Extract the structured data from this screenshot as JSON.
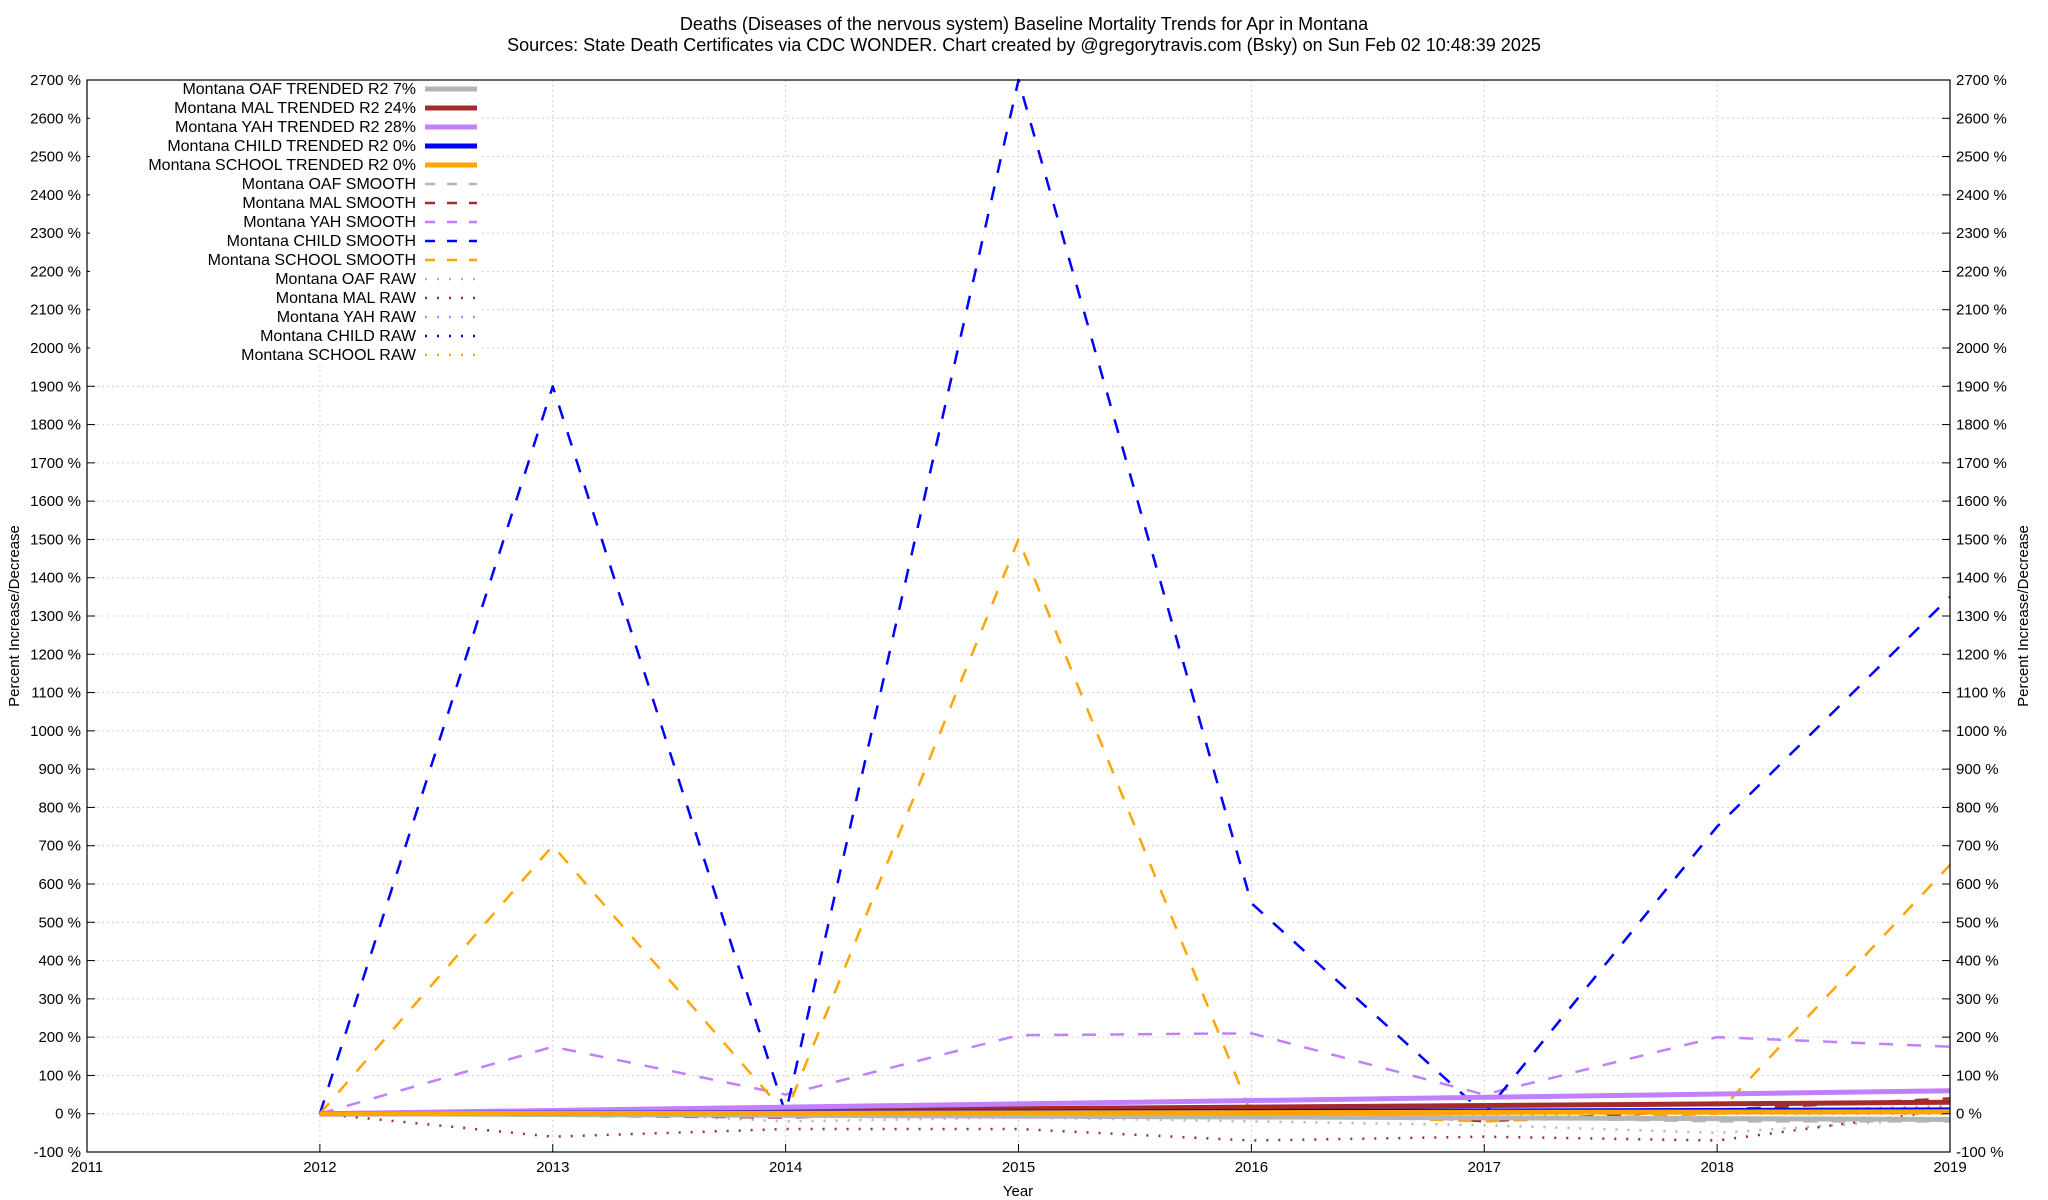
{
  "chart_data": {
    "type": "line",
    "title": "Deaths (Diseases of the nervous system)  Baseline Mortality Trends for Apr in Montana",
    "subtitle": "Sources: State Death Certificates via CDC WONDER.               Chart created by @gregorytravis.com (Bsky) on Sun Feb 02 10:48:39 2025",
    "xlabel": "Year",
    "ylabel": "Percent Increase/Decrease",
    "y2label": "Percent Increase/Decrease",
    "xlim": [
      2011,
      2019
    ],
    "ylim": [
      -100,
      2700
    ],
    "x_ticks": [
      "2011",
      "2012",
      "2013",
      "2014",
      "2015",
      "2016",
      "2017",
      "2018",
      "2019"
    ],
    "y_ticks": [
      "-100 %",
      "0 %",
      "100 %",
      "200 %",
      "300 %",
      "400 %",
      "500 %",
      "600 %",
      "700 %",
      "800 %",
      "900 %",
      "1000 %",
      "1100 %",
      "1200 %",
      "1300 %",
      "1400 %",
      "1500 %",
      "1600 %",
      "1700 %",
      "1800 %",
      "1900 %",
      "2000 %",
      "2100 %",
      "2200 %",
      "2300 %",
      "2400 %",
      "2500 %",
      "2600 %",
      "2700 %"
    ],
    "grid": true,
    "legend_position": "top-left",
    "series": [
      {
        "name": "Montana OAF TRENDED R2  7%",
        "style": "solid",
        "color": "#b4b4b4",
        "x": [
          2012,
          2019
        ],
        "y": [
          0,
          -15
        ]
      },
      {
        "name": "Montana MAL TRENDED R2  24%",
        "style": "solid",
        "color": "#a52a2a",
        "x": [
          2012,
          2019
        ],
        "y": [
          0,
          30
        ]
      },
      {
        "name": "Montana YAH TRENDED R2  28%",
        "style": "solid",
        "color": "#c080ff",
        "x": [
          2012,
          2019
        ],
        "y": [
          0,
          60
        ]
      },
      {
        "name": "Montana CHILD TRENDED R2   0%",
        "style": "solid",
        "color": "#0000ff",
        "x": [
          2012,
          2019
        ],
        "y": [
          0,
          10
        ]
      },
      {
        "name": "Montana SCHOOL TRENDED R2   0%",
        "style": "solid",
        "color": "#ffa500",
        "x": [
          2012,
          2019
        ],
        "y": [
          0,
          5
        ]
      },
      {
        "name": "Montana OAF SMOOTH",
        "style": "dashed",
        "color": "#b4b4b4",
        "x": [
          2012,
          2013,
          2014,
          2015,
          2016,
          2017,
          2018,
          2019
        ],
        "y": [
          0,
          10,
          -10,
          0,
          0,
          -10,
          -20,
          -20
        ]
      },
      {
        "name": "Montana MAL SMOOTH",
        "style": "dashed",
        "color": "#a52a2a",
        "x": [
          2012,
          2013,
          2014,
          2015,
          2016,
          2017,
          2018,
          2019
        ],
        "y": [
          0,
          -5,
          -10,
          10,
          20,
          -20,
          10,
          40
        ]
      },
      {
        "name": "Montana YAH SMOOTH",
        "style": "dashed",
        "color": "#c080ff",
        "x": [
          2012,
          2013,
          2014,
          2015,
          2016,
          2017,
          2018,
          2019
        ],
        "y": [
          0,
          175,
          50,
          205,
          210,
          50,
          200,
          175
        ]
      },
      {
        "name": "Montana CHILD SMOOTH",
        "style": "dashed",
        "color": "#0000ff",
        "x": [
          2012,
          2013,
          2014,
          2015,
          2016,
          2017,
          2018,
          2019
        ],
        "y": [
          0,
          1900,
          0,
          2700,
          550,
          0,
          750,
          1350
        ]
      },
      {
        "name": "Montana SCHOOL SMOOTH",
        "style": "dashed",
        "color": "#ffa500",
        "x": [
          2012,
          2013,
          2014,
          2015,
          2016,
          2017,
          2018,
          2019
        ],
        "y": [
          0,
          700,
          0,
          1500,
          0,
          -20,
          0,
          650
        ]
      },
      {
        "name": "Montana OAF RAW",
        "style": "dotted",
        "color": "#b4b4b4",
        "x": [
          2012,
          2013,
          2014,
          2015,
          2016,
          2017,
          2018,
          2019
        ],
        "y": [
          0,
          10,
          -20,
          -10,
          -20,
          -30,
          -50,
          -10
        ]
      },
      {
        "name": "Montana MAL RAW",
        "style": "dotted",
        "color": "#a52a2a",
        "x": [
          2012,
          2013,
          2014,
          2015,
          2016,
          2017,
          2018,
          2019
        ],
        "y": [
          0,
          -60,
          -40,
          -40,
          -70,
          -60,
          -70,
          10
        ]
      },
      {
        "name": "Montana YAH RAW",
        "style": "dotted",
        "color": "#c080ff",
        "x": [
          2012,
          2013,
          2014,
          2015,
          2016,
          2017,
          2018,
          2019
        ],
        "y": [
          0,
          5,
          -5,
          10,
          15,
          -5,
          5,
          20
        ]
      },
      {
        "name": "Montana CHILD RAW",
        "style": "dotted",
        "color": "#0000ff",
        "x": [
          2012,
          2013,
          2014,
          2015,
          2016,
          2017,
          2018,
          2019
        ],
        "y": [
          0,
          0,
          0,
          0,
          0,
          0,
          0,
          0
        ]
      },
      {
        "name": "Montana SCHOOL RAW",
        "style": "dotted",
        "color": "#ffa500",
        "x": [
          2012,
          2013,
          2014,
          2015,
          2016,
          2017,
          2018,
          2019
        ],
        "y": [
          0,
          0,
          0,
          0,
          0,
          0,
          0,
          0
        ]
      }
    ]
  }
}
